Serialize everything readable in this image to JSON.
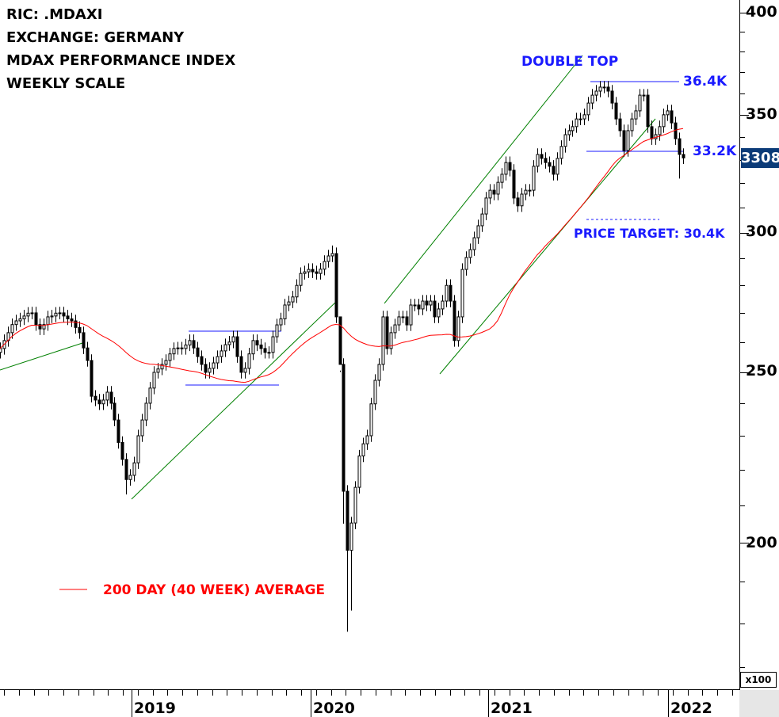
{
  "info": {
    "ric": "RIC: .MDAXI",
    "exchange": "EXCHANGE: GERMANY",
    "name": "MDAX PERFORMANCE INDEX",
    "scale": "WEEKLY SCALE"
  },
  "annotations": {
    "double_top": "DOUBLE TOP",
    "resistance": "36.4K",
    "support": "33.2K",
    "price_target": "PRICE TARGET: 30.4K",
    "legend_ma": "200 DAY (40 WEEK) AVERAGE",
    "last_price": "3308",
    "multiplier": "x100"
  },
  "colors": {
    "ma": "#ff0000",
    "trend": "#008000",
    "levels": "#1a1aff",
    "price_box": "#0b3b78"
  },
  "chart_data": {
    "type": "candlestick",
    "title": "MDAX PERFORMANCE INDEX",
    "scale": "log",
    "ylim": [
      170,
      405
    ],
    "y_ticks": [
      "400",
      "350",
      "300",
      "250",
      "200"
    ],
    "y_tick_values": [
      400,
      350,
      300,
      250,
      200
    ],
    "x_labels": [
      "2019",
      "2020",
      "2021",
      "2022"
    ],
    "ma_period_weeks": 40,
    "closes": [
      257.8,
      260.5,
      263.2,
      266,
      267.3,
      268,
      269,
      270,
      270.1,
      266,
      264.5,
      266,
      268.7,
      269,
      270,
      270.1,
      269,
      268,
      267.3,
      265,
      263.2,
      258,
      253.8,
      242.2,
      241,
      239.8,
      241,
      243.5,
      240,
      234.8,
      228,
      223,
      217.2,
      218.4,
      222,
      230,
      234.8,
      240,
      244.8,
      249.9,
      251,
      252.5,
      253.8,
      256,
      257.8,
      258,
      257.8,
      259,
      260.5,
      258,
      255.1,
      252.5,
      249.9,
      251.2,
      253,
      255.1,
      257,
      259.1,
      260,
      261.8,
      255.1,
      249.9,
      251.2,
      256,
      260.5,
      259,
      257.8,
      256.5,
      256.5,
      261.8,
      265.9,
      268,
      272.9,
      274,
      275.8,
      280,
      284.4,
      285,
      285.9,
      285,
      284.4,
      286,
      288.9,
      291,
      291.9,
      268.7,
      252.5,
      213.9,
      198,
      205.2,
      215,
      224,
      227.6,
      230,
      239.8,
      247.3,
      252.5,
      268.7,
      257.8,
      263.2,
      265.9,
      268.7,
      268.7,
      265.9,
      272.9,
      272.9,
      271.5,
      274.3,
      272.9,
      274.3,
      268.7,
      271.5,
      274.3,
      280,
      274.3,
      260.5,
      268.7,
      285.9,
      290.4,
      293.4,
      298,
      302.7,
      307.4,
      313.9,
      317.1,
      315.5,
      320.4,
      323.8,
      328.8,
      325.5,
      313.9,
      310.7,
      315.5,
      317.1,
      317.1,
      327.2,
      332.3,
      330.6,
      328.8,
      327.2,
      323.8,
      330.6,
      335.8,
      341,
      342.8,
      344.6,
      348.1,
      348.1,
      350,
      355.4,
      359.1,
      361,
      362.9,
      362.9,
      361,
      355.4,
      348.1,
      342.8,
      334,
      342.8,
      348.1,
      351.8,
      359.1,
      359.1,
      344.6,
      339.2,
      341,
      344.6,
      350,
      351.8,
      346.3,
      339.2,
      332.3,
      330.8
    ],
    "low_overrides": {
      "32": 213,
      "87": 205,
      "88": 178,
      "89": 183,
      "172": 322
    },
    "high_overrides": {
      "84": 295,
      "86": 250
    }
  }
}
